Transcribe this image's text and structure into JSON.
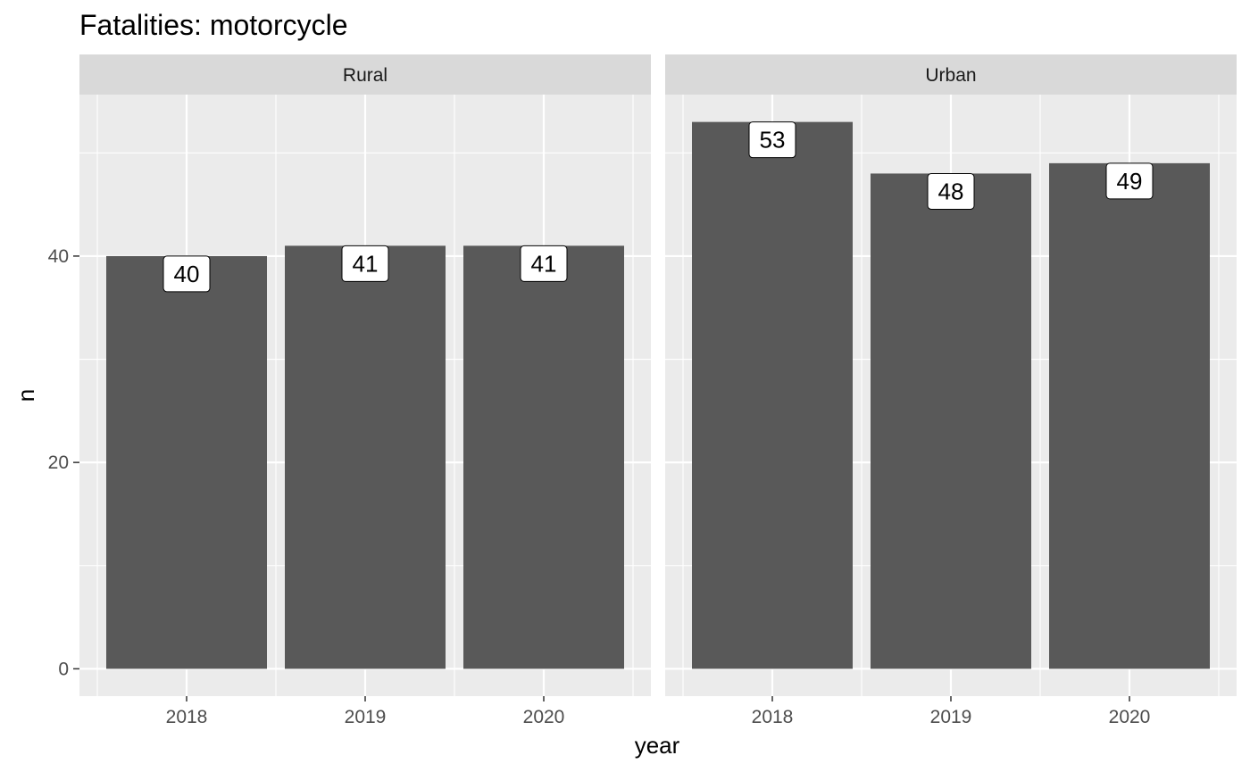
{
  "chart_data": {
    "type": "bar",
    "title": "Fatalities: motorcycle",
    "xlabel": "year",
    "ylabel": "n",
    "categories": [
      "2018",
      "2019",
      "2020"
    ],
    "panels": [
      {
        "name": "Rural",
        "values": [
          40,
          41,
          41
        ]
      },
      {
        "name": "Urban",
        "values": [
          53,
          48,
          49
        ]
      }
    ],
    "yticks": [
      0,
      20,
      40
    ],
    "ylim": [
      -2.65,
      55.65
    ],
    "grid": true,
    "legend": "none"
  },
  "colors": {
    "panel_background": "#EBEBEB",
    "strip_background": "#D9D9D9",
    "bar_fill": "#595959",
    "grid_major": "#FFFFFF",
    "label_fill": "#FFFFFF"
  }
}
